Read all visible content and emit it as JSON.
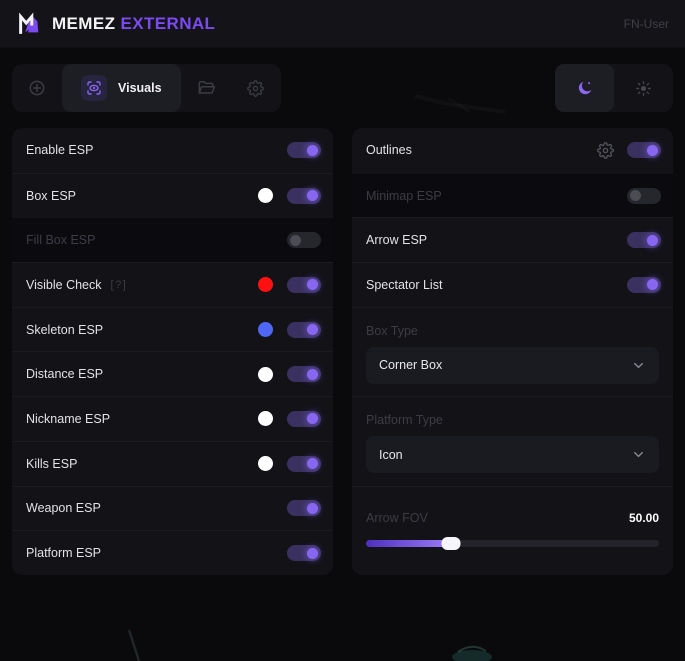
{
  "header": {
    "brand_primary": "MEMEZ ",
    "brand_secondary": "EXTERNAL",
    "username": "FN-User"
  },
  "toolbar": {
    "tabs": [
      {
        "id": "aimbot",
        "icon": "crosshair-icon",
        "active": false
      },
      {
        "id": "visuals",
        "icon": "eye-icon",
        "label": "Visuals",
        "active": true
      },
      {
        "id": "configs",
        "icon": "folder-icon",
        "active": false
      },
      {
        "id": "settings",
        "icon": "gear-icon",
        "active": false
      }
    ],
    "theme": {
      "active_mode": "dark",
      "dark_icon": "moon-icon",
      "light_icon": "sun-icon"
    }
  },
  "left_panel": {
    "rows": [
      {
        "type": "toggle",
        "label": "Enable ESP",
        "on": true
      },
      {
        "type": "toggle",
        "label": "Box ESP",
        "on": true,
        "swatch": "#ffffff"
      },
      {
        "type": "toggle",
        "label": "Fill Box ESP",
        "on": false,
        "disabled": true
      },
      {
        "type": "toggle",
        "label": "Visible Check",
        "on": true,
        "badge": "[?]",
        "swatch": "#ff1010"
      },
      {
        "type": "toggle",
        "label": "Skeleton ESP",
        "on": true,
        "swatch": "#4f67f2"
      },
      {
        "type": "toggle",
        "label": "Distance ESP",
        "on": true,
        "swatch": "#ffffff"
      },
      {
        "type": "toggle",
        "label": "Nickname ESP",
        "on": true,
        "swatch": "#ffffff"
      },
      {
        "type": "toggle",
        "label": "Kills ESP",
        "on": true,
        "swatch": "#ffffff"
      },
      {
        "type": "toggle",
        "label": "Weapon ESP",
        "on": true
      },
      {
        "type": "toggle",
        "label": "Platform ESP",
        "on": true
      }
    ]
  },
  "right_panel": {
    "rows": [
      {
        "type": "toggle",
        "label": "Outlines",
        "on": true,
        "gear": true
      },
      {
        "type": "toggle",
        "label": "Minimap ESP",
        "on": false,
        "disabled": true
      },
      {
        "type": "toggle",
        "label": "Arrow ESP",
        "on": true
      },
      {
        "type": "toggle",
        "label": "Spectator List",
        "on": true
      },
      {
        "type": "select",
        "label": "Box Type",
        "value": "Corner Box"
      },
      {
        "type": "select",
        "label": "Platform Type",
        "value": "Icon"
      },
      {
        "type": "slider",
        "label": "Arrow FOV",
        "value": "50.00",
        "percent": 29
      }
    ]
  },
  "colors": {
    "accent": "#7b4af0",
    "toggle_on_knob": "#8767f0",
    "swatch_red": "#ff1010",
    "swatch_blue": "#4f67f2",
    "swatch_white": "#ffffff"
  }
}
